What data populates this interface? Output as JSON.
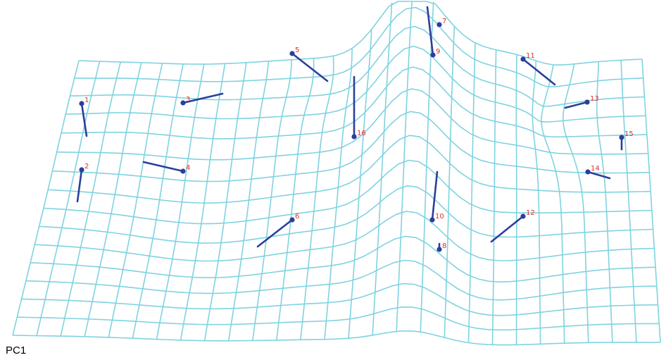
{
  "figure": {
    "component_label": "PC1",
    "colors": {
      "grid": "#7fd3e0",
      "vector": "#2b3f9a",
      "landmark": "#2b3f9a",
      "label": "#e0302e"
    }
  },
  "landmarks": [
    {
      "id": "1"
    },
    {
      "id": "2"
    },
    {
      "id": "3"
    },
    {
      "id": "4"
    },
    {
      "id": "5"
    },
    {
      "id": "6"
    },
    {
      "id": "7"
    },
    {
      "id": "8"
    },
    {
      "id": "9"
    },
    {
      "id": "10"
    },
    {
      "id": "11"
    },
    {
      "id": "12"
    },
    {
      "id": "13"
    },
    {
      "id": "14"
    },
    {
      "id": "15"
    },
    {
      "id": "16"
    }
  ]
}
